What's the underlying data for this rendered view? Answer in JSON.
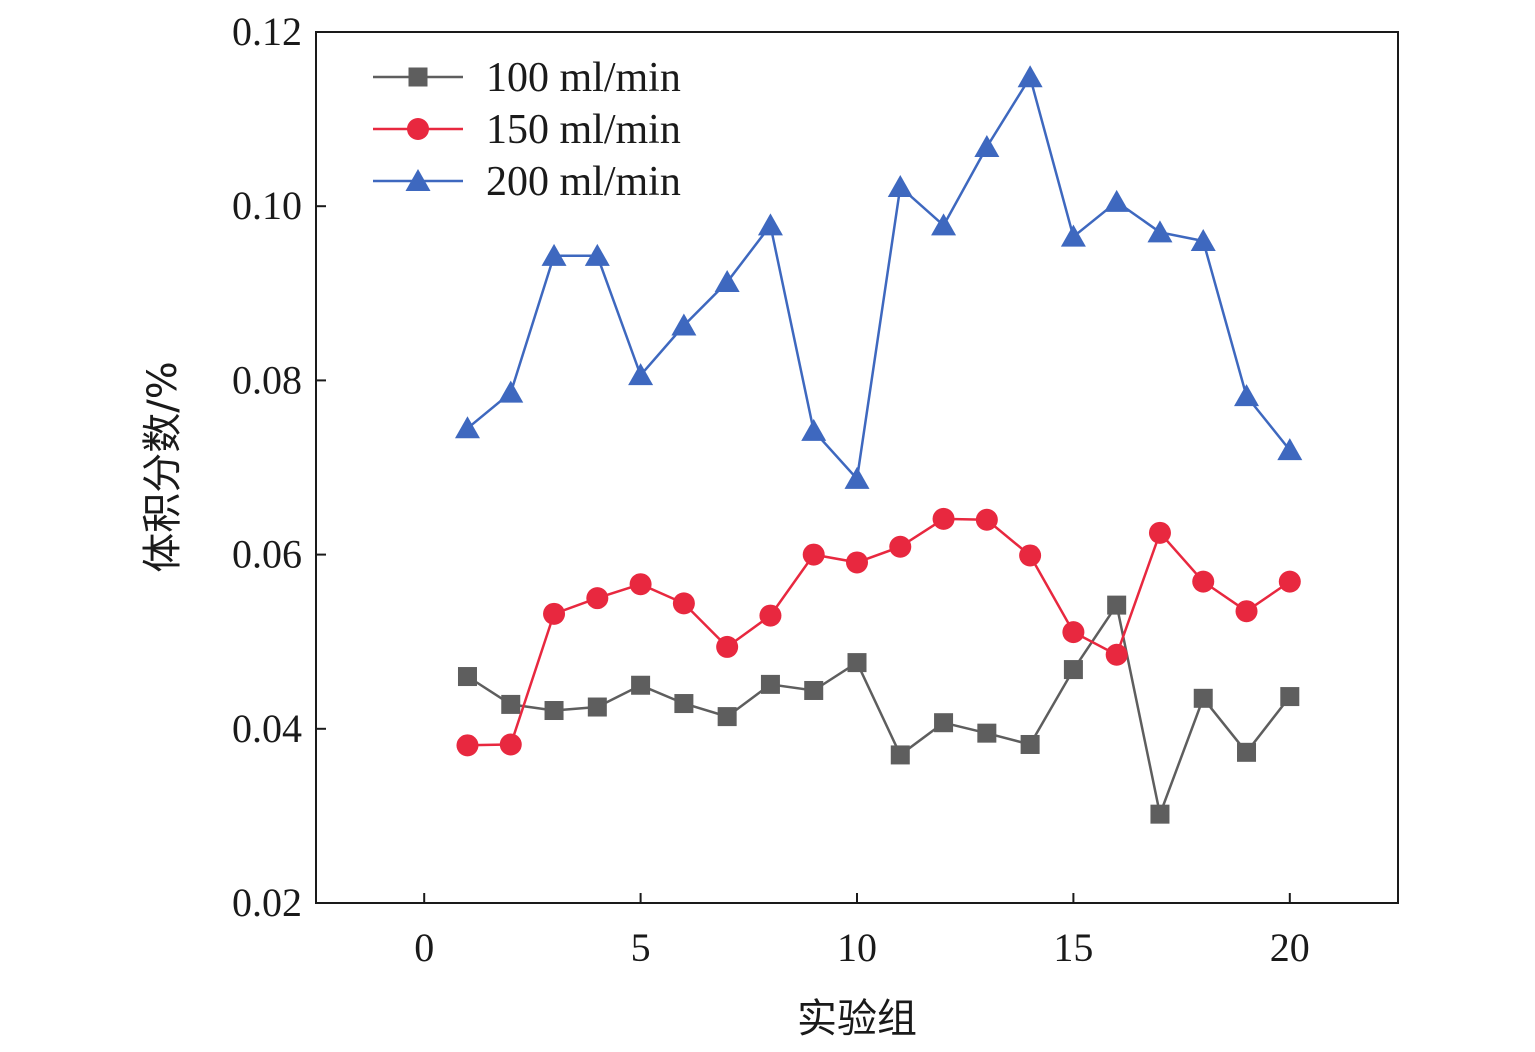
{
  "chart_data": {
    "type": "line",
    "xlabel": "实验组",
    "ylabel": "体积分数/%",
    "xlim": [
      -2.5,
      22.5
    ],
    "ylim": [
      0.02,
      0.12
    ],
    "xticks": [
      "0",
      "5",
      "10",
      "15",
      "20"
    ],
    "yticks": [
      "0.02",
      "0.04",
      "0.06",
      "0.08",
      "0.10",
      "0.12"
    ],
    "grid": false,
    "legend_position": "top-left",
    "x": [
      1,
      2,
      3,
      4,
      5,
      6,
      7,
      8,
      9,
      10,
      11,
      12,
      13,
      14,
      15,
      16,
      17,
      18,
      19,
      20
    ],
    "series": [
      {
        "name": "100 ml/min",
        "color": "#5e5e5e",
        "marker": "square",
        "values": [
          0.046,
          0.0428,
          0.0421,
          0.0425,
          0.045,
          0.0429,
          0.0414,
          0.0451,
          0.0444,
          0.0476,
          0.037,
          0.0407,
          0.0395,
          0.0382,
          0.0468,
          0.0542,
          0.0302,
          0.0435,
          0.0373,
          0.0437
        ]
      },
      {
        "name": "150 ml/min",
        "color": "#e8283f",
        "marker": "circle",
        "values": [
          0.0381,
          0.0382,
          0.0532,
          0.055,
          0.0566,
          0.0544,
          0.0494,
          0.053,
          0.06,
          0.0591,
          0.0609,
          0.0641,
          0.064,
          0.0599,
          0.0511,
          0.0485,
          0.0625,
          0.0569,
          0.0535,
          0.0569
        ]
      },
      {
        "name": "200 ml/min",
        "color": "#3e68bf",
        "marker": "triangle",
        "values": [
          0.0745,
          0.0786,
          0.0943,
          0.0943,
          0.0806,
          0.0863,
          0.0913,
          0.0978,
          0.0742,
          0.0687,
          0.1022,
          0.0978,
          0.1068,
          0.1148,
          0.0965,
          0.1005,
          0.097,
          0.096,
          0.0782,
          0.072
        ]
      }
    ]
  }
}
